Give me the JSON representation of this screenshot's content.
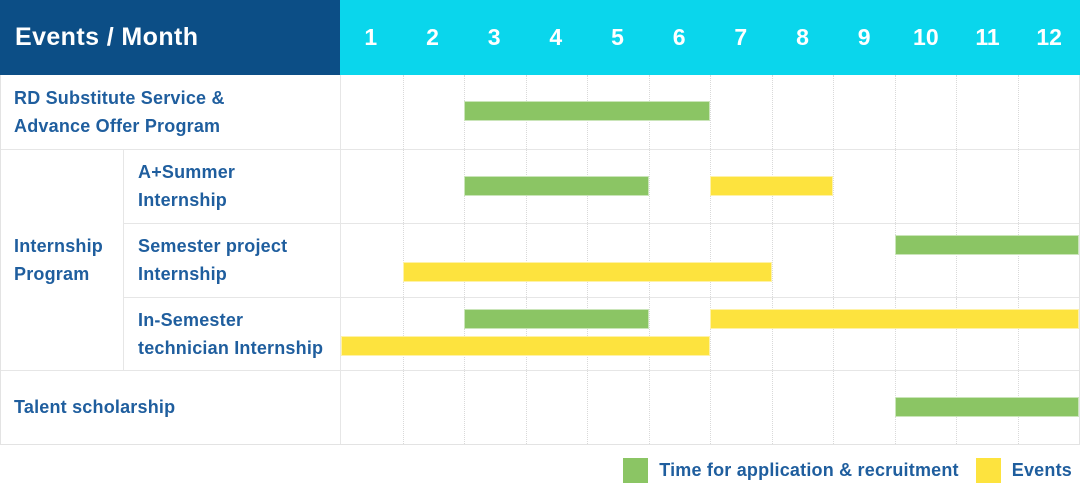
{
  "header": {
    "corner": "Events / Month"
  },
  "colors": {
    "header_bg": "#0c4e86",
    "month_header_bg": "#0ad6ec",
    "recruitment_green": "#8bc564",
    "event_yellow": "#fde33e",
    "label_text": "#1f5e9e",
    "grid_line": "#e6e6e6"
  },
  "chart_data": {
    "type": "gantt",
    "title": "Events / Month",
    "x_axis": {
      "unit": "month",
      "range": [
        1,
        12
      ],
      "ticks": [
        "1",
        "2",
        "3",
        "4",
        "5",
        "6",
        "7",
        "8",
        "9",
        "10",
        "11",
        "12"
      ]
    },
    "legend": [
      {
        "name": "Time for application & recruitment",
        "kind": "recruitment",
        "color": "#8bc564"
      },
      {
        "name": "Events",
        "kind": "event",
        "color": "#fde33e"
      }
    ],
    "group_label_lines": {
      "Internship Program": [
        "Internship",
        "Program"
      ]
    },
    "rows": [
      {
        "group": "",
        "label": "RD Substitute Service & Advance Offer Program",
        "label_lines": [
          "RD Substitute Service &",
          "Advance Offer Program"
        ],
        "bars": [
          {
            "kind": "recruitment",
            "start": 3,
            "end": 6,
            "lane": "single"
          }
        ]
      },
      {
        "group": "Internship Program",
        "label": "A+Summer Internship",
        "label_lines": [
          "A+Summer",
          "Internship"
        ],
        "bars": [
          {
            "kind": "recruitment",
            "start": 3,
            "end": 5,
            "lane": "single"
          },
          {
            "kind": "event",
            "start": 7,
            "end": 8,
            "lane": "single"
          }
        ]
      },
      {
        "group": "Internship Program",
        "label": "Semester project Internship",
        "label_lines": [
          "Semester project",
          "Internship"
        ],
        "bars": [
          {
            "kind": "recruitment",
            "start": 10,
            "end": 12,
            "lane": "top"
          },
          {
            "kind": "event",
            "start": 2,
            "end": 7,
            "lane": "bottom"
          }
        ]
      },
      {
        "group": "Internship Program",
        "label": "In-Semester technician Internship",
        "label_lines": [
          "In-Semester",
          "technician Internship"
        ],
        "bars": [
          {
            "kind": "recruitment",
            "start": 3,
            "end": 5,
            "lane": "top"
          },
          {
            "kind": "event",
            "start": 7,
            "end": 12,
            "lane": "top"
          },
          {
            "kind": "event",
            "start": 1,
            "end": 6,
            "lane": "bottom"
          }
        ]
      },
      {
        "group": "",
        "label": "Talent scholarship",
        "label_lines": [
          "Talent scholarship"
        ],
        "bars": [
          {
            "kind": "recruitment",
            "start": 10,
            "end": 12,
            "lane": "single"
          }
        ]
      }
    ]
  }
}
